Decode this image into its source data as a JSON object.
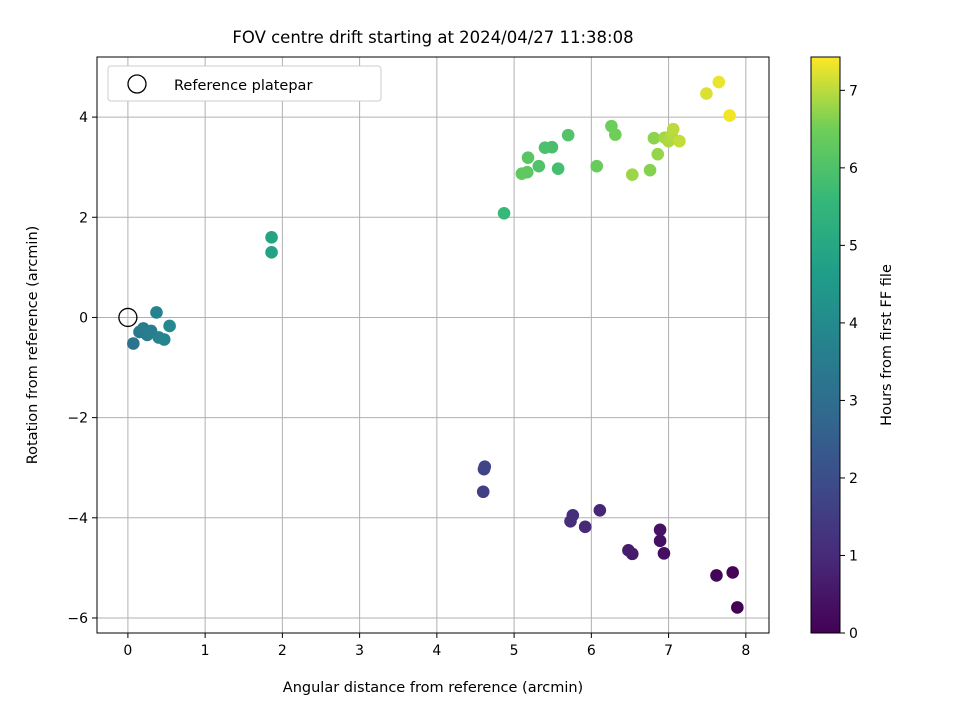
{
  "chart_data": {
    "type": "scatter",
    "title": "FOV centre drift starting at 2024/04/27 11:38:08",
    "xlabel": "Angular distance from reference (arcmin)",
    "ylabel": "Rotation from reference (arcmin)",
    "xlim": [
      -0.4,
      8.3
    ],
    "ylim": [
      -6.3,
      5.2
    ],
    "xticks": [
      0,
      1,
      2,
      3,
      4,
      5,
      6,
      7,
      8
    ],
    "xtick_labels": [
      "0",
      "1",
      "2",
      "3",
      "4",
      "5",
      "6",
      "7",
      "8"
    ],
    "yticks": [
      -6,
      -4,
      -2,
      0,
      2,
      4
    ],
    "ytick_labels": [
      "−6",
      "−4",
      "−2",
      "0",
      "2",
      "4"
    ],
    "grid": true,
    "legend": {
      "position": "top-left",
      "entries": [
        "Reference platepar"
      ]
    },
    "reference_point": {
      "x": 0,
      "y": 0
    },
    "colorbar": {
      "label": "Hours from first FF file",
      "min": 0,
      "max": 7.43,
      "ticks": [
        0,
        1,
        2,
        3,
        4,
        5,
        6,
        7
      ],
      "tick_labels": [
        "0",
        "1",
        "2",
        "3",
        "4",
        "5",
        "6",
        "7"
      ],
      "colormap": "viridis"
    },
    "points": [
      {
        "x": 7.89,
        "y": -5.79,
        "c": 0.0
      },
      {
        "x": 7.83,
        "y": -5.09,
        "c": 0.05
      },
      {
        "x": 7.62,
        "y": -5.15,
        "c": 0.1
      },
      {
        "x": 6.94,
        "y": -4.71,
        "c": 0.3
      },
      {
        "x": 6.89,
        "y": -4.46,
        "c": 0.35
      },
      {
        "x": 6.89,
        "y": -4.24,
        "c": 0.4
      },
      {
        "x": 6.53,
        "y": -4.72,
        "c": 0.6
      },
      {
        "x": 6.48,
        "y": -4.65,
        "c": 0.65
      },
      {
        "x": 6.11,
        "y": -3.85,
        "c": 0.85
      },
      {
        "x": 5.92,
        "y": -4.18,
        "c": 1.0
      },
      {
        "x": 5.76,
        "y": -3.95,
        "c": 1.1
      },
      {
        "x": 5.73,
        "y": -4.07,
        "c": 1.15
      },
      {
        "x": 4.6,
        "y": -3.48,
        "c": 1.6
      },
      {
        "x": 4.61,
        "y": -3.03,
        "c": 1.7
      },
      {
        "x": 4.62,
        "y": -2.98,
        "c": 1.75
      },
      {
        "x": 0.07,
        "y": -0.52,
        "c": 3.2
      },
      {
        "x": 0.15,
        "y": -0.29,
        "c": 3.35
      },
      {
        "x": 0.2,
        "y": -0.22,
        "c": 3.45
      },
      {
        "x": 0.25,
        "y": -0.35,
        "c": 3.5
      },
      {
        "x": 0.3,
        "y": -0.27,
        "c": 3.55
      },
      {
        "x": 0.37,
        "y": 0.1,
        "c": 3.7
      },
      {
        "x": 0.4,
        "y": -0.4,
        "c": 3.75
      },
      {
        "x": 0.47,
        "y": -0.44,
        "c": 3.8
      },
      {
        "x": 0.54,
        "y": -0.17,
        "c": 3.9
      },
      {
        "x": 1.86,
        "y": 1.3,
        "c": 4.8
      },
      {
        "x": 1.86,
        "y": 1.6,
        "c": 4.85
      },
      {
        "x": 4.87,
        "y": 2.08,
        "c": 5.6
      },
      {
        "x": 5.57,
        "y": 2.97,
        "c": 5.85
      },
      {
        "x": 5.49,
        "y": 3.4,
        "c": 5.9
      },
      {
        "x": 5.4,
        "y": 3.39,
        "c": 5.95
      },
      {
        "x": 5.32,
        "y": 3.02,
        "c": 6.0
      },
      {
        "x": 5.7,
        "y": 3.64,
        "c": 6.05
      },
      {
        "x": 5.18,
        "y": 3.19,
        "c": 6.15
      },
      {
        "x": 5.17,
        "y": 2.9,
        "c": 6.2
      },
      {
        "x": 5.1,
        "y": 2.87,
        "c": 6.25
      },
      {
        "x": 6.07,
        "y": 3.02,
        "c": 6.4
      },
      {
        "x": 6.26,
        "y": 3.82,
        "c": 6.45
      },
      {
        "x": 6.31,
        "y": 3.65,
        "c": 6.5
      },
      {
        "x": 6.76,
        "y": 2.94,
        "c": 6.65
      },
      {
        "x": 6.81,
        "y": 3.58,
        "c": 6.7
      },
      {
        "x": 6.86,
        "y": 3.26,
        "c": 6.75
      },
      {
        "x": 6.53,
        "y": 2.85,
        "c": 6.8
      },
      {
        "x": 6.95,
        "y": 3.59,
        "c": 6.85
      },
      {
        "x": 7.0,
        "y": 3.52,
        "c": 6.9
      },
      {
        "x": 7.04,
        "y": 3.64,
        "c": 6.95
      },
      {
        "x": 7.06,
        "y": 3.76,
        "c": 7.0
      },
      {
        "x": 7.14,
        "y": 3.52,
        "c": 7.05
      },
      {
        "x": 7.49,
        "y": 4.47,
        "c": 7.2
      },
      {
        "x": 7.65,
        "y": 4.7,
        "c": 7.3
      },
      {
        "x": 7.79,
        "y": 4.03,
        "c": 7.35
      }
    ]
  }
}
